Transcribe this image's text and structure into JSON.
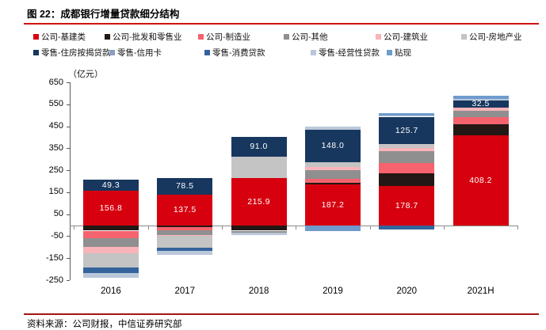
{
  "figure": {
    "title": "图 22：成都银行增量贷款细分结构",
    "unit_label": "（亿元）",
    "source": "资料来源：公司财报，中信证券研究部"
  },
  "legend": {
    "rows": [
      [
        0,
        1,
        2,
        3,
        4,
        5
      ],
      [
        6,
        7,
        8,
        9,
        10
      ]
    ]
  },
  "chart_data": {
    "type": "bar",
    "stacked": true,
    "title": "成都银行增量贷款细分结构",
    "ylabel": "（亿元）",
    "ylim": [
      -250,
      650
    ],
    "yticks": [
      650,
      550,
      450,
      350,
      250,
      150,
      50,
      -50,
      -150,
      -250
    ],
    "grid": false,
    "legend_position": "top",
    "categories": [
      "2016",
      "2017",
      "2018",
      "2019",
      "2020",
      "2021H"
    ],
    "series": [
      {
        "name": "公司-基建类",
        "color": "#d7000f",
        "values": [
          156.8,
          137.5,
          215.9,
          187.2,
          178.7,
          408.2
        ],
        "labels": [
          "156.8",
          "137.5",
          "215.9",
          "187.2",
          "178.7",
          "408.2"
        ]
      },
      {
        "name": "公司-批发和零售业",
        "color": "#231815",
        "values": [
          -25,
          -10,
          -25,
          7,
          58,
          50
        ]
      },
      {
        "name": "公司-制造业",
        "color": "#f4636e",
        "values": [
          -35,
          -14,
          0,
          18,
          47,
          35
        ]
      },
      {
        "name": "公司-其他",
        "color": "#8f8f8f",
        "values": [
          -40,
          -21,
          -9,
          39,
          54,
          28
        ]
      },
      {
        "name": "公司-建筑业",
        "color": "#f9b4ba",
        "values": [
          -28,
          -4,
          0,
          14,
          15,
          15
        ]
      },
      {
        "name": "公司-房地产业",
        "color": "#c4c4c4",
        "values": [
          -64,
          -53,
          96,
          21,
          15,
          0
        ]
      },
      {
        "name": "零售-住房按揭贷款",
        "color": "#17375e",
        "values": [
          49.3,
          78.5,
          91.0,
          148.0,
          125.7,
          32.5
        ],
        "labels": [
          "49.3",
          "78.5",
          "91.0",
          "148.0",
          "125.7",
          "32.5"
        ]
      },
      {
        "name": "零售-信用卡",
        "color": "#8aa0bd",
        "values": [
          0,
          0,
          0,
          0,
          0,
          0
        ]
      },
      {
        "name": "零售-消费贷款",
        "color": "#35639b",
        "values": [
          -25,
          -14,
          0,
          0,
          -21,
          0
        ]
      },
      {
        "name": "零售-经营性贷款",
        "color": "#b9c7d9",
        "values": [
          -21,
          -18,
          -9,
          14,
          7,
          6
        ]
      },
      {
        "name": "贴现",
        "color": "#6f9bcd",
        "values": [
          0,
          0,
          0,
          -28,
          10,
          15
        ]
      }
    ]
  }
}
